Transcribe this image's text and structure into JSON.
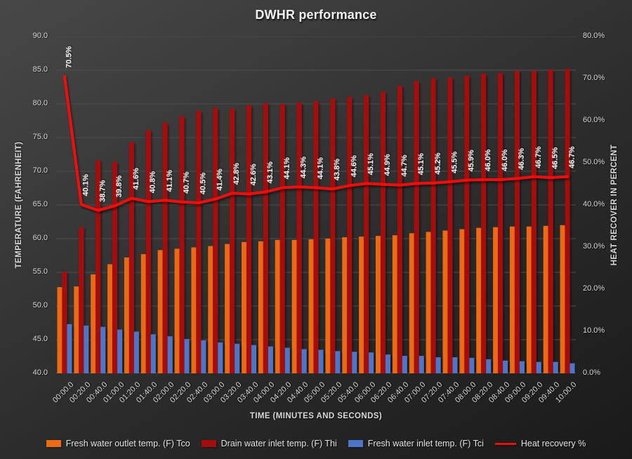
{
  "chart_data": {
    "type": "bar",
    "subtype": "grouped-bars-with-line-overlay",
    "title": "DWHR performance",
    "categories": [
      "00:00.0",
      "00:20.0",
      "00:40.0",
      "01:00.0",
      "01:20.0",
      "01:40.0",
      "02:00.0",
      "02:20.0",
      "02:40.0",
      "03:00.0",
      "03:20.0",
      "03:40.0",
      "04:00.0",
      "04:20.0",
      "04:40.0",
      "05:00.0",
      "05:20.0",
      "05:40.0",
      "06:00.0",
      "06:20.0",
      "06:40.0",
      "07:00.0",
      "07:20.0",
      "07:40.0",
      "08:00.0",
      "08:20.0",
      "08:40.0",
      "09:00.0",
      "09:20.0",
      "09:40.0",
      "10:00.0"
    ],
    "series": [
      {
        "name": "Fresh water outlet temp. (F) Tco",
        "type": "bar",
        "axis": "left",
        "color": "#EC6B13",
        "values": [
          52.8,
          52.9,
          54.7,
          56.2,
          57.2,
          57.7,
          58.3,
          58.5,
          58.7,
          58.9,
          59.2,
          59.5,
          59.6,
          59.8,
          59.8,
          59.9,
          60.0,
          60.2,
          60.3,
          60.4,
          60.5,
          60.8,
          61.0,
          61.2,
          61.4,
          61.6,
          61.7,
          61.8,
          61.8,
          61.9,
          62.0
        ]
      },
      {
        "name": "Drain water inlet temp. (F) Thi",
        "type": "bar",
        "axis": "left",
        "color": "#A50D0D",
        "values": [
          55.1,
          61.7,
          71.6,
          71.4,
          74.3,
          76.1,
          77.2,
          78.2,
          79.0,
          79.4,
          79.3,
          79.8,
          80.1,
          80.0,
          80.2,
          80.4,
          80.8,
          81.0,
          81.3,
          81.8,
          82.7,
          83.4,
          83.8,
          83.9,
          84.2,
          84.5,
          84.6,
          84.9,
          84.9,
          85.1,
          85.2
        ]
      },
      {
        "name": "Fresh water inlet temp. (F) Tci",
        "type": "bar",
        "axis": "left",
        "color": "#4D76C9",
        "values": [
          47.3,
          47.1,
          46.9,
          46.5,
          46.2,
          45.8,
          45.5,
          45.1,
          44.9,
          44.6,
          44.4,
          44.2,
          44.0,
          43.8,
          43.6,
          43.5,
          43.3,
          43.2,
          43.1,
          42.8,
          42.6,
          42.6,
          42.4,
          42.4,
          42.3,
          42.1,
          41.9,
          41.8,
          41.7,
          41.7,
          41.5
        ]
      },
      {
        "name": "Heat recovery %",
        "type": "line",
        "axis": "right",
        "color": "#F20D0D",
        "values": [
          70.5,
          40.1,
          38.7,
          39.8,
          41.6,
          40.8,
          41.1,
          40.7,
          40.5,
          41.4,
          42.8,
          42.6,
          43.1,
          44.1,
          44.3,
          44.1,
          43.8,
          44.6,
          45.1,
          44.9,
          44.7,
          45.1,
          45.2,
          45.5,
          45.9,
          46.0,
          46.0,
          46.3,
          46.7,
          46.5,
          46.7
        ],
        "point_labels": [
          "70.5%",
          "40.1%",
          "38.7%",
          "39.8%",
          "41.6%",
          "40.8%",
          "41.1%",
          "40.7%",
          "40.5%",
          "41.4%",
          "42.8%",
          "42.6%",
          "43.1%",
          "44.1%",
          "44.3%",
          "44.1%",
          "43.8%",
          "44.6%",
          "45.1%",
          "44.9%",
          "44.7%",
          "45.1%",
          "45.2%",
          "45.5%",
          "45.9%",
          "46.0%",
          "46.0%",
          "46.3%",
          "46.7%",
          "46.5%",
          "46.7%"
        ]
      }
    ],
    "left_axis": {
      "title": "TEMPERATURE (FAHRENHEIT)",
      "min": 40,
      "max": 90,
      "tick_values": [
        90,
        85,
        80,
        75,
        70,
        65,
        60,
        55,
        50,
        45,
        40
      ],
      "tick_labels": [
        "90.0",
        "85.0",
        "80.0",
        "75.0",
        "70.0",
        "65.0",
        "60.0",
        "55.0",
        "50.0",
        "45.0",
        "40.0"
      ]
    },
    "right_axis": {
      "title": "HEAT RECOVER IN PERCENT",
      "min": 0,
      "max": 80,
      "tick_values": [
        80,
        70,
        60,
        50,
        40,
        30,
        20,
        10,
        0
      ],
      "tick_labels": [
        "80.0%",
        "70.0%",
        "60.0%",
        "50.0%",
        "40.0%",
        "30.0%",
        "20.0%",
        "10.0%",
        "0.0%"
      ]
    },
    "x_axis": {
      "title": "TIME (MINUTES AND SECONDS)"
    },
    "legend_position": "bottom",
    "grid": "horizontal",
    "style": {
      "background": "dark-gray-gradient",
      "gridline_color": "#4e4e4e",
      "baseline_color": "#8d8d8d",
      "tick_text_color": "#d6d6d6",
      "data_label_color": "#f2f2f2"
    }
  }
}
